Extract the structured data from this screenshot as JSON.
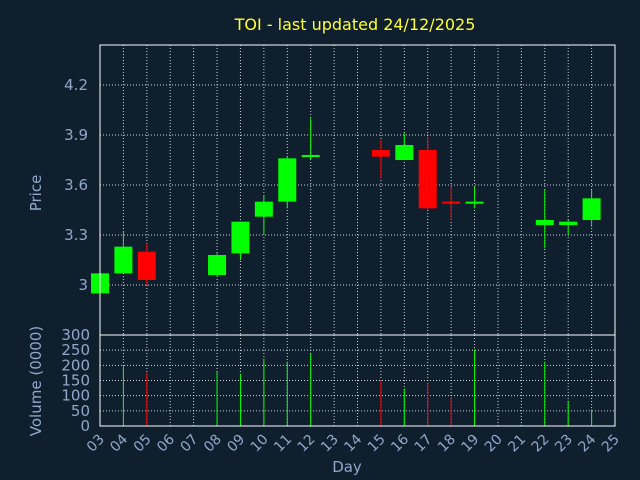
{
  "chart_data": [
    {
      "type": "candlestick",
      "title": "TOI - last updated 24/12/2025",
      "ylabel": "Price",
      "ylim": [
        2.7,
        4.44
      ],
      "yticks": [
        3,
        3.3,
        3.6,
        3.9,
        4.2
      ],
      "ytick_labels": [
        "3",
        "3.3",
        "3.6",
        "3.9",
        "4.2"
      ],
      "grid": true,
      "colors": {
        "up": "#00ff00",
        "down": "#ff0000",
        "background": "#0f1f2e",
        "grid": "#ffffff",
        "title": "#ffff33",
        "axis_text": "#8fa8cc"
      },
      "candles": [
        {
          "day": 3,
          "open": 2.95,
          "high": 3.07,
          "low": 2.95,
          "close": 3.07
        },
        {
          "day": 4,
          "open": 3.07,
          "high": 3.32,
          "low": 3.07,
          "close": 3.23
        },
        {
          "day": 5,
          "open": 3.2,
          "high": 3.25,
          "low": 3.0,
          "close": 3.03
        },
        {
          "day": 8,
          "open": 3.06,
          "high": 3.19,
          "low": 3.05,
          "close": 3.18
        },
        {
          "day": 9,
          "open": 3.19,
          "high": 3.38,
          "low": 3.15,
          "close": 3.38
        },
        {
          "day": 10,
          "open": 3.41,
          "high": 3.54,
          "low": 3.3,
          "close": 3.5
        },
        {
          "day": 11,
          "open": 3.5,
          "high": 3.77,
          "low": 3.46,
          "close": 3.76
        },
        {
          "day": 12,
          "open": 3.77,
          "high": 4.0,
          "low": 3.75,
          "close": 3.78
        },
        {
          "day": 15,
          "open": 3.81,
          "high": 3.87,
          "low": 3.64,
          "close": 3.77
        },
        {
          "day": 16,
          "open": 3.75,
          "high": 3.91,
          "low": 3.75,
          "close": 3.84
        },
        {
          "day": 17,
          "open": 3.81,
          "high": 3.89,
          "low": 3.45,
          "close": 3.46
        },
        {
          "day": 18,
          "open": 3.5,
          "high": 3.59,
          "low": 3.39,
          "close": 3.49
        },
        {
          "day": 19,
          "open": 3.49,
          "high": 3.59,
          "low": 3.46,
          "close": 3.5
        },
        {
          "day": 22,
          "open": 3.36,
          "high": 3.57,
          "low": 3.22,
          "close": 3.39
        },
        {
          "day": 23,
          "open": 3.36,
          "high": 3.39,
          "low": 3.3,
          "close": 3.38
        },
        {
          "day": 24,
          "open": 3.39,
          "high": 3.57,
          "low": 3.35,
          "close": 3.52
        }
      ]
    },
    {
      "type": "bar",
      "ylabel": "Volume (0000)",
      "xlabel": "Day",
      "ylim": [
        0,
        300
      ],
      "yticks": [
        0,
        50,
        100,
        150,
        200,
        250,
        300
      ],
      "ytick_labels": [
        "0",
        "50",
        "100",
        "150",
        "200",
        "250",
        "300"
      ],
      "x_categories": [
        "03",
        "04",
        "05",
        "06",
        "07",
        "08",
        "09",
        "10",
        "11",
        "12",
        "13",
        "14",
        "15",
        "16",
        "17",
        "18",
        "19",
        "20",
        "21",
        "22",
        "23",
        "24",
        "25"
      ],
      "volumes": [
        {
          "day": 4,
          "value": 200,
          "direction": "up"
        },
        {
          "day": 5,
          "value": 175,
          "direction": "down"
        },
        {
          "day": 8,
          "value": 178,
          "direction": "up"
        },
        {
          "day": 9,
          "value": 172,
          "direction": "up"
        },
        {
          "day": 10,
          "value": 222,
          "direction": "up"
        },
        {
          "day": 11,
          "value": 212,
          "direction": "up"
        },
        {
          "day": 12,
          "value": 238,
          "direction": "up"
        },
        {
          "day": 15,
          "value": 150,
          "direction": "down"
        },
        {
          "day": 16,
          "value": 123,
          "direction": "up"
        },
        {
          "day": 17,
          "value": 142,
          "direction": "down"
        },
        {
          "day": 18,
          "value": 95,
          "direction": "down"
        },
        {
          "day": 19,
          "value": 252,
          "direction": "up"
        },
        {
          "day": 22,
          "value": 212,
          "direction": "up"
        },
        {
          "day": 23,
          "value": 80,
          "direction": "up"
        },
        {
          "day": 24,
          "value": 55,
          "direction": "up"
        }
      ]
    }
  ]
}
